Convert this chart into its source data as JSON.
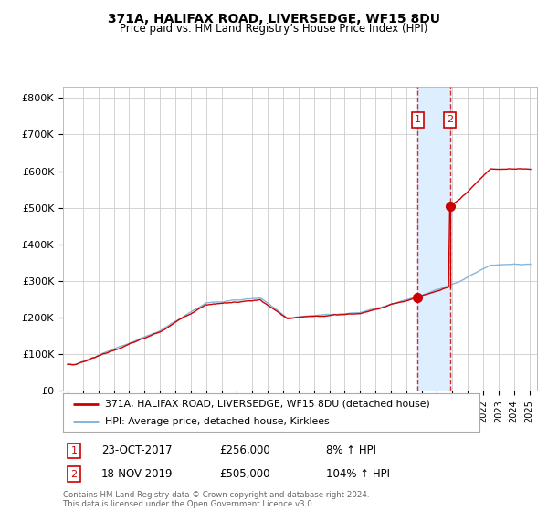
{
  "title": "371A, HALIFAX ROAD, LIVERSEDGE, WF15 8DU",
  "subtitle": "Price paid vs. HM Land Registry’s House Price Index (HPI)",
  "legend_line1": "371A, HALIFAX ROAD, LIVERSEDGE, WF15 8DU (detached house)",
  "legend_line2": "HPI: Average price, detached house, Kirklees",
  "footnote": "Contains HM Land Registry data © Crown copyright and database right 2024.\nThis data is licensed under the Open Government Licence v3.0.",
  "sale1_label": "1",
  "sale1_date": "23-OCT-2017",
  "sale1_price": 256000,
  "sale1_pct": "8% ↑ HPI",
  "sale2_label": "2",
  "sale2_date": "18-NOV-2019",
  "sale2_price": 505000,
  "sale2_pct": "104% ↑ HPI",
  "red_color": "#cc0000",
  "blue_color": "#7aaed6",
  "shade_color": "#ddeeff",
  "background_color": "#ffffff",
  "grid_color": "#cccccc",
  "ylim": [
    0,
    830000
  ],
  "yticks": [
    0,
    100000,
    200000,
    300000,
    400000,
    500000,
    600000,
    700000,
    800000
  ],
  "ytick_labels": [
    "£0",
    "£100K",
    "£200K",
    "£300K",
    "£400K",
    "£500K",
    "£600K",
    "£700K",
    "£800K"
  ],
  "sale1_year": 2017.79,
  "sale2_year": 2019.87
}
